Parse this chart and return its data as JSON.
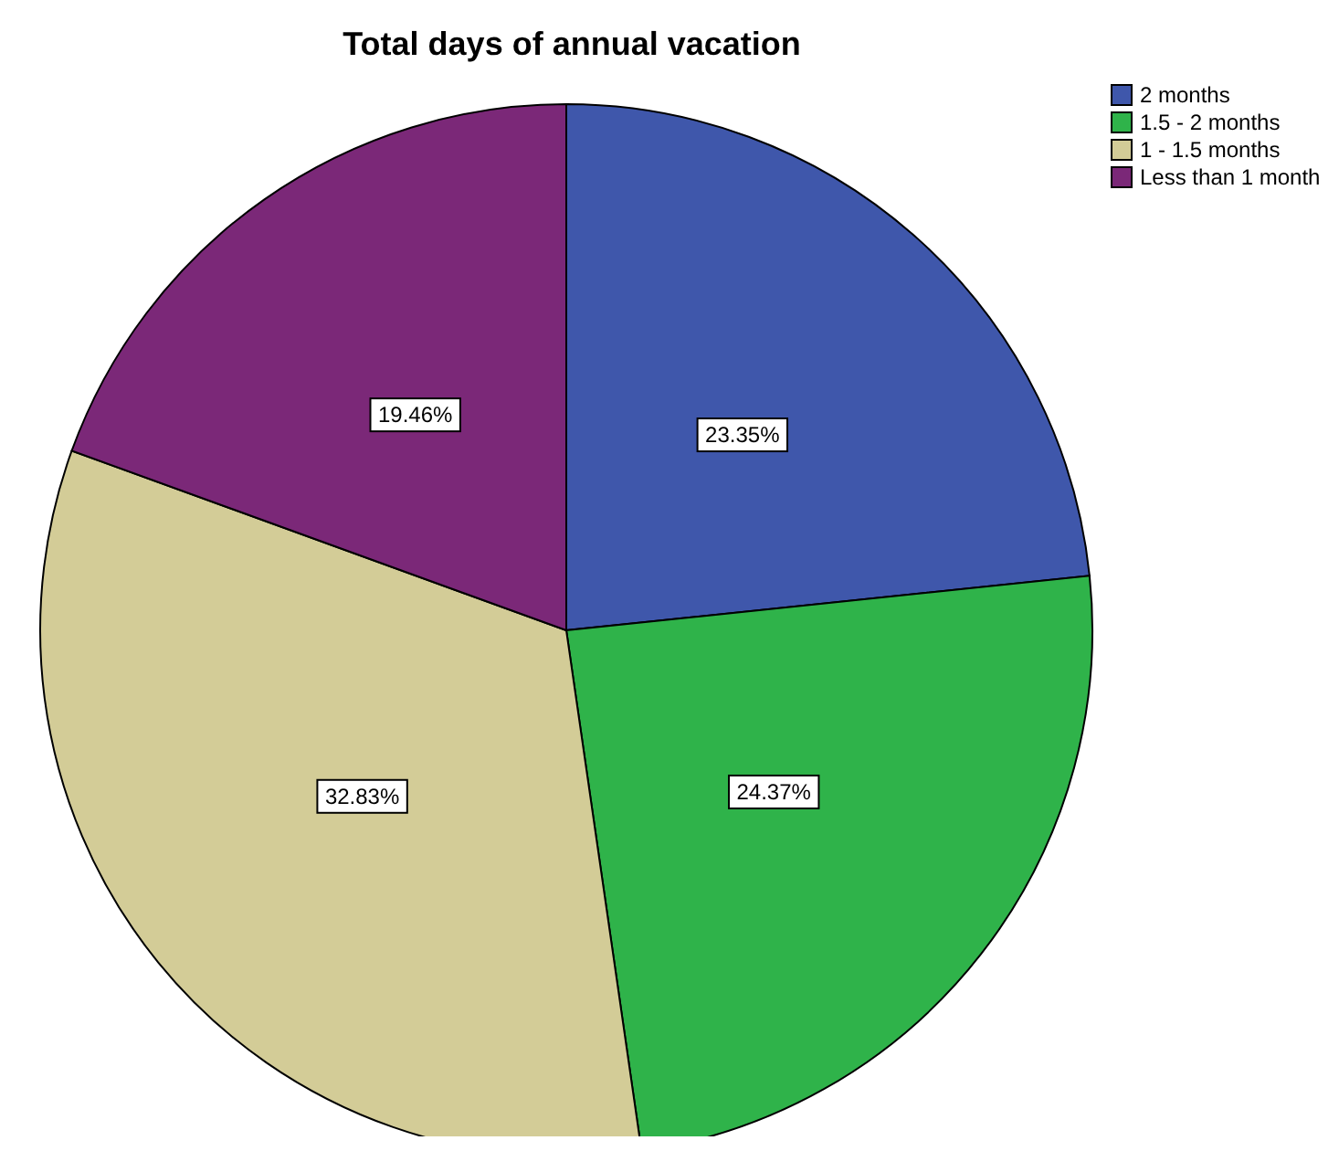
{
  "chart_data": {
    "type": "pie",
    "title": "Total days of annual vacation",
    "categories": [
      "2 months",
      "1.5 - 2 months",
      "1 - 1.5 months",
      "Less than 1 month"
    ],
    "values": [
      23.35,
      24.37,
      32.83,
      19.46
    ],
    "value_labels": [
      "23.35%",
      "24.37%",
      "32.83%",
      "19.46%"
    ],
    "colors": [
      "#3f57ab",
      "#2fb34a",
      "#d3cc97",
      "#7b2878"
    ],
    "legend": "top right"
  }
}
